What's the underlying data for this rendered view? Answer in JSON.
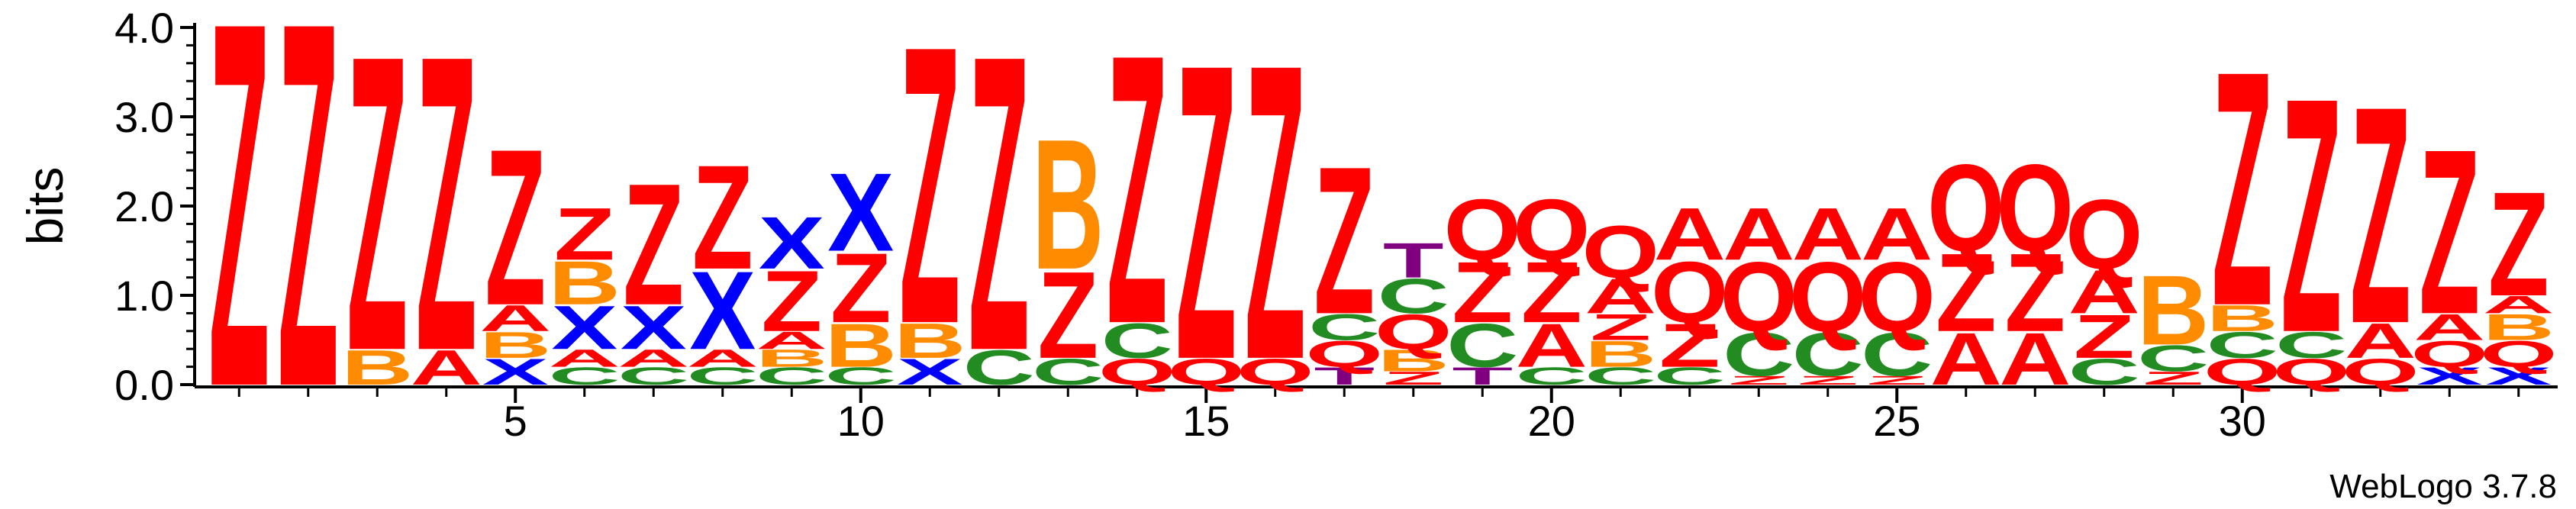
{
  "chart_data": {
    "type": "sequence-logo",
    "ylabel": "bits",
    "ylim": [
      0,
      4.0
    ],
    "yticks": [
      "0.0",
      "1.0",
      "2.0",
      "3.0",
      "4.0"
    ],
    "xticks": [
      5,
      10,
      15,
      20,
      25,
      30
    ],
    "xlim": [
      0.5,
      34.5
    ],
    "footer": "WebLogo 3.7.8",
    "colors": {
      "Z": "#ff0000",
      "Q": "#ff0000",
      "A": "#ff0000",
      "B": "#ff8c00",
      "C": "#228b22",
      "X": "#0000ff",
      "T": "#800080"
    },
    "positions": [
      {
        "pos": 1,
        "stack": [
          {
            "letter": "Z",
            "bits": 4.2
          }
        ]
      },
      {
        "pos": 2,
        "stack": [
          {
            "letter": "Z",
            "bits": 4.2
          }
        ]
      },
      {
        "pos": 3,
        "stack": [
          {
            "letter": "B",
            "bits": 0.4
          },
          {
            "letter": "Z",
            "bits": 3.4
          }
        ]
      },
      {
        "pos": 4,
        "stack": [
          {
            "letter": "A",
            "bits": 0.4
          },
          {
            "letter": "Z",
            "bits": 3.4
          }
        ]
      },
      {
        "pos": 5,
        "stack": [
          {
            "letter": "X",
            "bits": 0.3
          },
          {
            "letter": "B",
            "bits": 0.3
          },
          {
            "letter": "A",
            "bits": 0.3
          },
          {
            "letter": "Z",
            "bits": 1.8
          }
        ]
      },
      {
        "pos": 6,
        "stack": [
          {
            "letter": "C",
            "bits": 0.2
          },
          {
            "letter": "A",
            "bits": 0.2
          },
          {
            "letter": "X",
            "bits": 0.5
          },
          {
            "letter": "B",
            "bits": 0.5
          },
          {
            "letter": "Z",
            "bits": 0.6
          }
        ]
      },
      {
        "pos": 7,
        "stack": [
          {
            "letter": "C",
            "bits": 0.2
          },
          {
            "letter": "A",
            "bits": 0.2
          },
          {
            "letter": "X",
            "bits": 0.5
          },
          {
            "letter": "Z",
            "bits": 1.4
          }
        ]
      },
      {
        "pos": 8,
        "stack": [
          {
            "letter": "C",
            "bits": 0.2
          },
          {
            "letter": "A",
            "bits": 0.2
          },
          {
            "letter": "X",
            "bits": 0.9
          },
          {
            "letter": "Z",
            "bits": 1.2
          }
        ]
      },
      {
        "pos": 9,
        "stack": [
          {
            "letter": "C",
            "bits": 0.2
          },
          {
            "letter": "B",
            "bits": 0.2
          },
          {
            "letter": "A",
            "bits": 0.2
          },
          {
            "letter": "Z",
            "bits": 0.7
          },
          {
            "letter": "X",
            "bits": 0.6
          }
        ]
      },
      {
        "pos": 10,
        "stack": [
          {
            "letter": "C",
            "bits": 0.2
          },
          {
            "letter": "B",
            "bits": 0.5
          },
          {
            "letter": "Z",
            "bits": 0.8
          },
          {
            "letter": "X",
            "bits": 0.9
          }
        ]
      },
      {
        "pos": 11,
        "stack": [
          {
            "letter": "X",
            "bits": 0.3
          },
          {
            "letter": "B",
            "bits": 0.4
          },
          {
            "letter": "Z",
            "bits": 3.2
          }
        ]
      },
      {
        "pos": 12,
        "stack": [
          {
            "letter": "C",
            "bits": 0.4
          },
          {
            "letter": "Z",
            "bits": 3.4
          }
        ]
      },
      {
        "pos": 13,
        "stack": [
          {
            "letter": "C",
            "bits": 0.3
          },
          {
            "letter": "Z",
            "bits": 1.0
          },
          {
            "letter": "B",
            "bits": 1.5
          }
        ]
      },
      {
        "pos": 14,
        "stack": [
          {
            "letter": "Q",
            "bits": 0.3
          },
          {
            "letter": "C",
            "bits": 0.4
          },
          {
            "letter": "Z",
            "bits": 3.1
          }
        ]
      },
      {
        "pos": 15,
        "stack": [
          {
            "letter": "Q",
            "bits": 0.3
          },
          {
            "letter": "Z",
            "bits": 3.4
          }
        ]
      },
      {
        "pos": 16,
        "stack": [
          {
            "letter": "Q",
            "bits": 0.3
          },
          {
            "letter": "Z",
            "bits": 3.4
          }
        ]
      },
      {
        "pos": 17,
        "stack": [
          {
            "letter": "T",
            "bits": 0.2
          },
          {
            "letter": "Q",
            "bits": 0.3
          },
          {
            "letter": "C",
            "bits": 0.3
          },
          {
            "letter": "Z",
            "bits": 1.7
          }
        ]
      },
      {
        "pos": 18,
        "stack": [
          {
            "letter": "Z",
            "bits": 0.15
          },
          {
            "letter": "B",
            "bits": 0.25
          },
          {
            "letter": "Q",
            "bits": 0.4
          },
          {
            "letter": "C",
            "bits": 0.4
          },
          {
            "letter": "T",
            "bits": 0.4
          }
        ]
      },
      {
        "pos": 19,
        "stack": [
          {
            "letter": "T",
            "bits": 0.2
          },
          {
            "letter": "C",
            "bits": 0.5
          },
          {
            "letter": "Z",
            "bits": 0.7
          },
          {
            "letter": "Q",
            "bits": 0.7
          }
        ]
      },
      {
        "pos": 20,
        "stack": [
          {
            "letter": "C",
            "bits": 0.2
          },
          {
            "letter": "A",
            "bits": 0.5
          },
          {
            "letter": "Z",
            "bits": 0.7
          },
          {
            "letter": "Q",
            "bits": 0.7
          }
        ]
      },
      {
        "pos": 21,
        "stack": [
          {
            "letter": "C",
            "bits": 0.2
          },
          {
            "letter": "B",
            "bits": 0.3
          },
          {
            "letter": "Z",
            "bits": 0.3
          },
          {
            "letter": "A",
            "bits": 0.4
          },
          {
            "letter": "Q",
            "bits": 0.6
          }
        ]
      },
      {
        "pos": 22,
        "stack": [
          {
            "letter": "C",
            "bits": 0.2
          },
          {
            "letter": "Z",
            "bits": 0.5
          },
          {
            "letter": "Q",
            "bits": 0.7
          },
          {
            "letter": "A",
            "bits": 0.6
          }
        ]
      },
      {
        "pos": 23,
        "stack": [
          {
            "letter": "Z",
            "bits": 0.1
          },
          {
            "letter": "C",
            "bits": 0.5
          },
          {
            "letter": "Q",
            "bits": 0.8
          },
          {
            "letter": "A",
            "bits": 0.6
          }
        ]
      },
      {
        "pos": 24,
        "stack": [
          {
            "letter": "Z",
            "bits": 0.1
          },
          {
            "letter": "C",
            "bits": 0.5
          },
          {
            "letter": "Q",
            "bits": 0.8
          },
          {
            "letter": "A",
            "bits": 0.6
          }
        ]
      },
      {
        "pos": 25,
        "stack": [
          {
            "letter": "Z",
            "bits": 0.1
          },
          {
            "letter": "C",
            "bits": 0.5
          },
          {
            "letter": "Q",
            "bits": 0.8
          },
          {
            "letter": "A",
            "bits": 0.6
          }
        ]
      },
      {
        "pos": 26,
        "stack": [
          {
            "letter": "A",
            "bits": 0.6
          },
          {
            "letter": "Z",
            "bits": 0.9
          },
          {
            "letter": "Q",
            "bits": 1.0
          }
        ]
      },
      {
        "pos": 27,
        "stack": [
          {
            "letter": "A",
            "bits": 0.6
          },
          {
            "letter": "Z",
            "bits": 0.9
          },
          {
            "letter": "Q",
            "bits": 1.0
          }
        ]
      },
      {
        "pos": 28,
        "stack": [
          {
            "letter": "C",
            "bits": 0.3
          },
          {
            "letter": "Z",
            "bits": 0.5
          },
          {
            "letter": "A",
            "bits": 0.5
          },
          {
            "letter": "Q",
            "bits": 0.8
          }
        ]
      },
      {
        "pos": 29,
        "stack": [
          {
            "letter": "Z",
            "bits": 0.15
          },
          {
            "letter": "C",
            "bits": 0.3
          },
          {
            "letter": "B",
            "bits": 0.8
          }
        ]
      },
      {
        "pos": 30,
        "stack": [
          {
            "letter": "Q",
            "bits": 0.3
          },
          {
            "letter": "C",
            "bits": 0.3
          },
          {
            "letter": "B",
            "bits": 0.3
          },
          {
            "letter": "Z",
            "bits": 2.7
          }
        ]
      },
      {
        "pos": 31,
        "stack": [
          {
            "letter": "Q",
            "bits": 0.3
          },
          {
            "letter": "C",
            "bits": 0.3
          },
          {
            "letter": "Z",
            "bits": 2.7
          }
        ]
      },
      {
        "pos": 32,
        "stack": [
          {
            "letter": "Q",
            "bits": 0.3
          },
          {
            "letter": "A",
            "bits": 0.4
          },
          {
            "letter": "Z",
            "bits": 2.5
          }
        ]
      },
      {
        "pos": 33,
        "stack": [
          {
            "letter": "X",
            "bits": 0.2
          },
          {
            "letter": "Q",
            "bits": 0.3
          },
          {
            "letter": "A",
            "bits": 0.3
          },
          {
            "letter": "Z",
            "bits": 1.9
          }
        ]
      },
      {
        "pos": 34,
        "stack": [
          {
            "letter": "X",
            "bits": 0.2
          },
          {
            "letter": "Q",
            "bits": 0.3
          },
          {
            "letter": "B",
            "bits": 0.3
          },
          {
            "letter": "A",
            "bits": 0.2
          },
          {
            "letter": "Z",
            "bits": 1.2
          }
        ]
      }
    ]
  }
}
